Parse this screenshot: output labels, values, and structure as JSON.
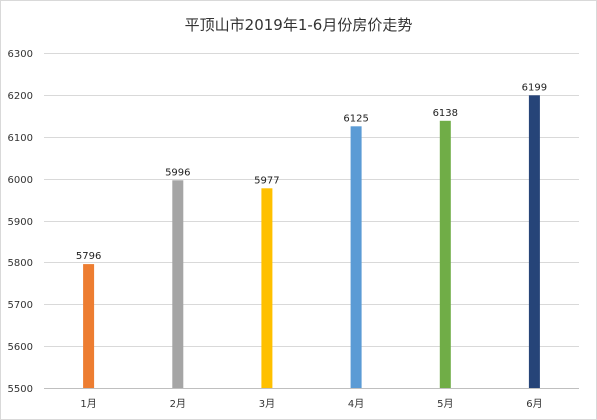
{
  "chart_data": {
    "type": "bar",
    "title": "平顶山市2019年1-6月份房价走势",
    "xlabel": "",
    "ylabel": "",
    "categories": [
      "1月",
      "2月",
      "3月",
      "4月",
      "5月",
      "6月"
    ],
    "values": [
      5796,
      5996,
      5977,
      6125,
      6138,
      6199
    ],
    "colors": [
      "#ed7d31",
      "#a5a5a5",
      "#ffc000",
      "#5b9bd5",
      "#70ad47",
      "#264478"
    ],
    "ylim": [
      5500,
      6300
    ],
    "yticks": [
      5500,
      5600,
      5700,
      5800,
      5900,
      6000,
      6100,
      6200,
      6300
    ],
    "grid": true,
    "data_labels": true,
    "legend": "none"
  }
}
